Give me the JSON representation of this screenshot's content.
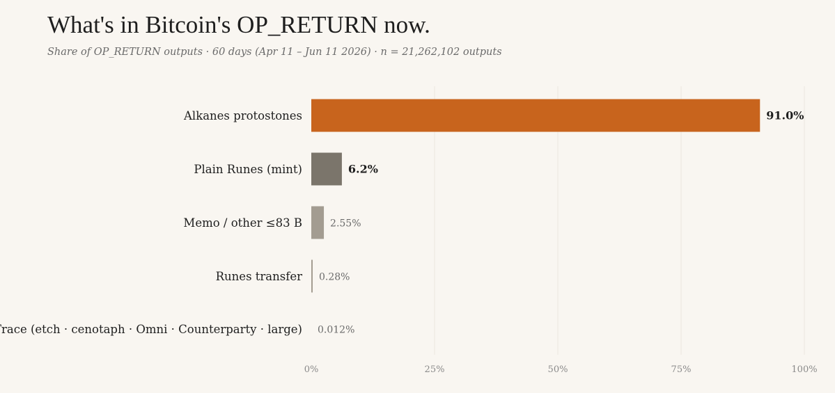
{
  "chart_data": {
    "type": "bar",
    "orientation": "horizontal",
    "title": "What's in Bitcoin's OP_RETURN now.",
    "subtitle": "Share of OP_RETURN outputs · 60 days (Apr 11 – Jun 11 2026) · n = 21,262,102 outputs",
    "categories": [
      "Alkanes protostones",
      "Plain Runes (mint)",
      "Memo / other ≤83 B",
      "Runes transfer",
      "Trace (etch · cenotaph · Omni · Counterparty · large)"
    ],
    "values": [
      91.0,
      6.2,
      2.55,
      0.28,
      0.012
    ],
    "value_labels": [
      "91.0%",
      "6.2%",
      "2.55%",
      "0.28%",
      "0.012%"
    ],
    "value_label_emphasis": [
      true,
      true,
      false,
      false,
      false
    ],
    "bar_colors": [
      "#c8641d",
      "#7b756b",
      "#a39c91",
      "#a39c91",
      "#a39c91"
    ],
    "xlim": [
      0,
      100
    ],
    "x_ticks": [
      0,
      25,
      50,
      75,
      100
    ],
    "x_tick_labels": [
      "0%",
      "25%",
      "50%",
      "75%",
      "100%"
    ],
    "xlabel": "",
    "ylabel": "",
    "grid": "vertical",
    "legend": "none"
  }
}
